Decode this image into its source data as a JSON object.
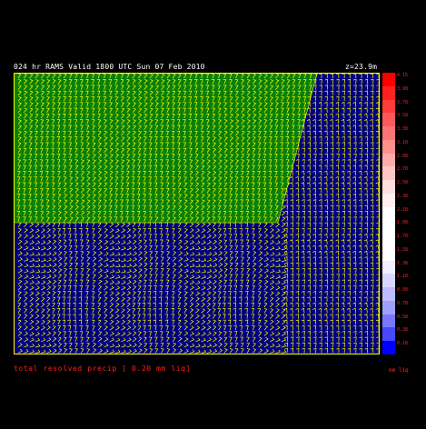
{
  "header": {
    "title": "024 hr RAMS Valid 1800 UTC Sun 07 Feb 2010",
    "level": "z=23.9m"
  },
  "colorbar": {
    "ticks": [
      "4.15",
      "3.98",
      "3.78",
      "3.58",
      "3.38",
      "3.18",
      "2.98",
      "2.78",
      "2.58",
      "2.38",
      "2.18",
      "1.98",
      "1.78",
      "1.58",
      "1.38",
      "1.18",
      "0.98",
      "0.78",
      "0.58",
      "0.38",
      "0.18"
    ],
    "colors": [
      "#ff0000",
      "#ff2020",
      "#ff3c3c",
      "#ff5858",
      "#ff7474",
      "#ff9090",
      "#ffaaaa",
      "#ffc4c4",
      "#ffdede",
      "#fff0f0",
      "#ffffff",
      "#ffffff",
      "#ffffff",
      "#ffffff",
      "#f0f0ff",
      "#d8d8ff",
      "#bcbcff",
      "#a0a0ff",
      "#7878ff",
      "#4848ff",
      "#0000ff"
    ],
    "units": "mm liq"
  },
  "footer": {
    "label": "total resolved precip [ 0.20 mm liq]"
  },
  "colors": {
    "background": "#000000",
    "ocean": "#00007e",
    "precip_field": "#008000",
    "barbs": "#ffff00",
    "text": "#ffffff",
    "legend_text": "#ff2020"
  },
  "icons": {
    "wind": "wind-barb-icon"
  }
}
